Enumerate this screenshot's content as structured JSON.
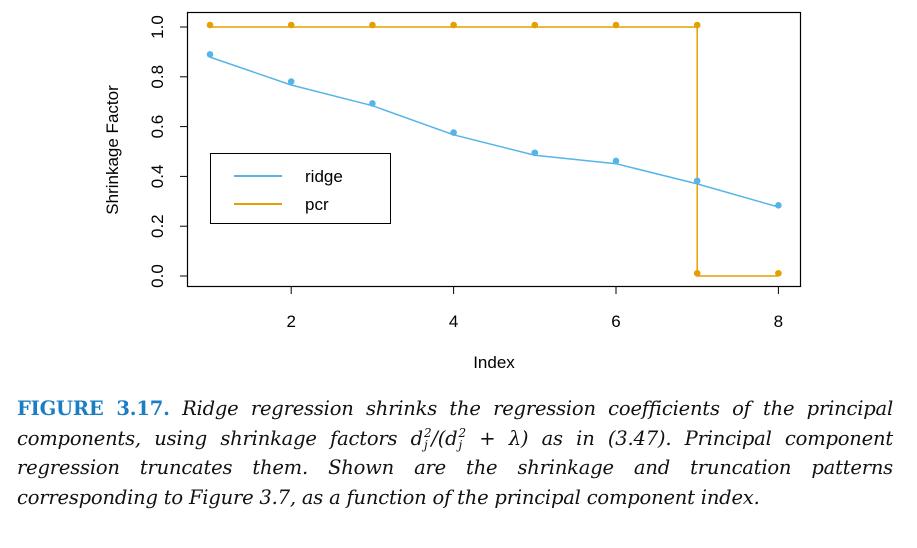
{
  "chart_data": {
    "type": "line",
    "xlabel": "Index",
    "ylabel": "Shrinkage Factor",
    "xlim": [
      0.7,
      8.3
    ],
    "ylim": [
      -0.04,
      1.06
    ],
    "x_ticks": [
      2,
      4,
      6,
      8
    ],
    "x_tick_labels": [
      "2",
      "4",
      "6",
      "8"
    ],
    "y_ticks": [
      0.0,
      0.2,
      0.4,
      0.6,
      0.8,
      1.0
    ],
    "y_tick_labels": [
      "0.0",
      "0.2",
      "0.4",
      "0.6",
      "0.8",
      "1.0"
    ],
    "grid": false,
    "legend": {
      "placement": "center-left",
      "entries": [
        "ridge",
        "pcr"
      ]
    },
    "x": [
      1,
      2,
      3,
      4,
      5,
      6,
      7,
      8
    ],
    "series": [
      {
        "name": "ridge",
        "color": "#56b4e9",
        "points": [
          0.89,
          0.781,
          0.693,
          0.576,
          0.495,
          0.462,
          0.382,
          0.284
        ],
        "line": [
          0.879,
          0.767,
          0.684,
          0.567,
          0.485,
          0.451,
          0.37,
          0.277
        ]
      },
      {
        "name": "pcr",
        "color": "#e69f00",
        "points_xy": [
          [
            1,
            1.008
          ],
          [
            2,
            1.008
          ],
          [
            3,
            1.008
          ],
          [
            4,
            1.008
          ],
          [
            5,
            1.008
          ],
          [
            6,
            1.008
          ],
          [
            7,
            1.008
          ],
          [
            7,
            0.011
          ],
          [
            8,
            0.011
          ]
        ],
        "line_xy": [
          [
            1,
            1.0
          ],
          [
            7,
            1.0
          ],
          [
            7,
            0.0
          ],
          [
            8,
            0.0
          ]
        ]
      }
    ]
  },
  "caption": {
    "label": "FIGURE 3.17.",
    "text_1": " Ridge regression shrinks the regression coefficients of the principal components, using shrinkage factors ",
    "math_d": "d",
    "math_sup": "2",
    "math_sub": "j",
    "math_mid": "/(d",
    "math_end": " + λ)",
    "text_2": " as in (3.47). Principal component regression truncates them. Shown are the shrinkage and truncation patterns corresponding to Figure 3.7, as a function of the principal component index."
  }
}
